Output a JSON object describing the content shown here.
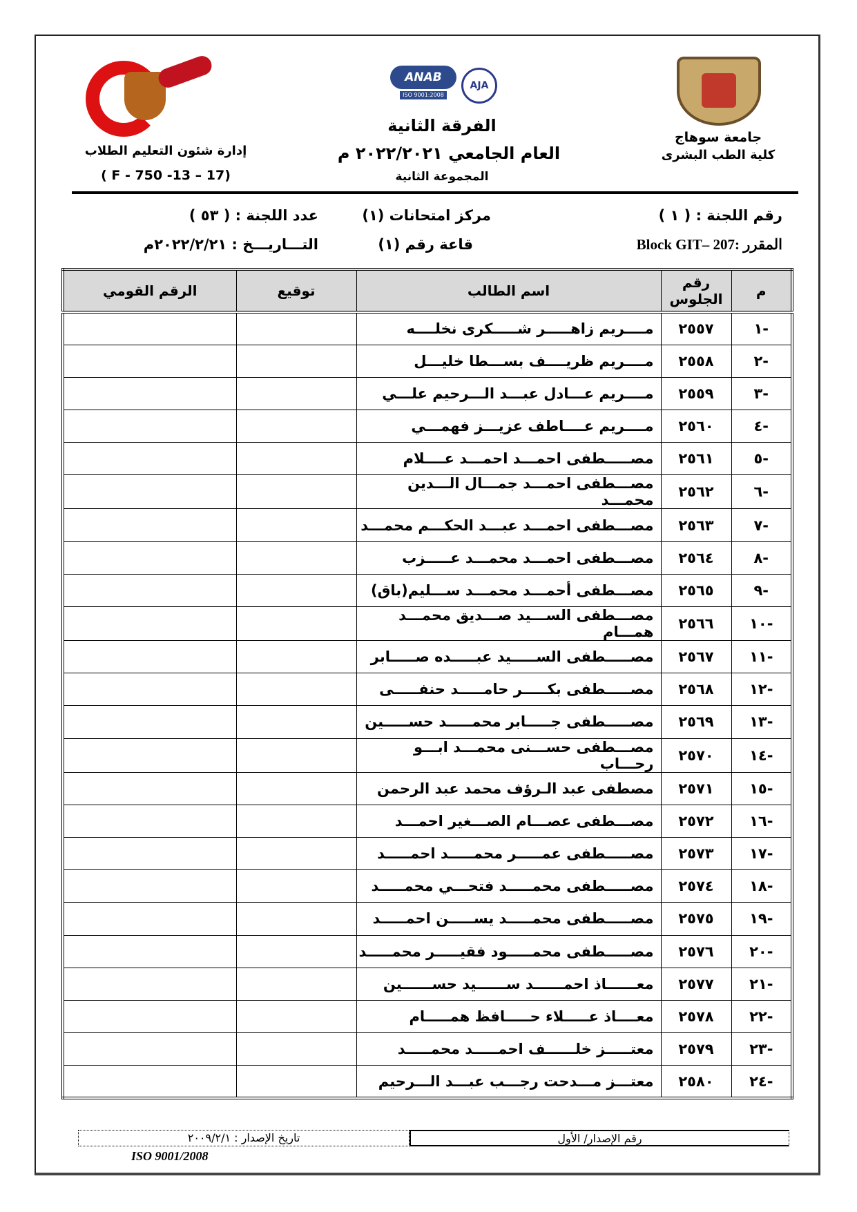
{
  "header": {
    "right_university": "جامعة سوهاج",
    "right_faculty": "كلية الطب البشرى",
    "center_year_level": "الفرقة الثانية",
    "center_academic_year": "العام الجامعي ٢٠٢٢/٢٠٢١ م",
    "center_group": "المجموعة الثانية",
    "left_department": "إدارة شئون التعليم الطلاب",
    "left_form_code": "( F - 750 -13 – 17)",
    "logo_left_text": "جامعة سوهاج كلية الطب",
    "logo_anab": "ANAB",
    "logo_iso": "ISO 9001:2008",
    "logo_aja": "AJA"
  },
  "info": {
    "committee_number": "رقم اللجنة : ( ١ )",
    "exam_center": "مركز امتحانات (١)",
    "committee_count": "عدد اللجنة : ( ٥٣ )",
    "course": "المقرر :Block GIT– 207",
    "hall": "قاعة رقم (١)",
    "date": "التـــاريـــخ : ٢٠٢٢/٢/٢١م"
  },
  "table": {
    "headers": [
      "م",
      "رقم الجلوس",
      "اسم الطالب",
      "توقيع",
      "الرقم القومي"
    ],
    "rows": [
      [
        "-١",
        "٢٥٥٧",
        "مــــريم زاهـــــر شـــــكرى نخلــــه"
      ],
      [
        "-٢",
        "٢٥٥٨",
        "مــــريم ظريــــف بســـطا خليـــل"
      ],
      [
        "-٣",
        "٢٥٥٩",
        "مــــريم عـــادل عبـــد الـــرحيم علـــي"
      ],
      [
        "-٤",
        "٢٥٦٠",
        "مــــريم عــــاطف عزيـــز فهمـــي"
      ],
      [
        "-٥",
        "٢٥٦١",
        "مصـــــطفى احمـــد احمـــد عــــلام"
      ],
      [
        "-٦",
        "٢٥٦٢",
        "مصـــطفى احمـــد جمـــال الـــدين محمـــد"
      ],
      [
        "-٧",
        "٢٥٦٣",
        "مصـــطفى احمـــد عبـــد الحكـــم محمـــد"
      ],
      [
        "-٨",
        "٢٥٦٤",
        "مصـــطفى احمـــد محمـــد عـــــزب"
      ],
      [
        "-٩",
        "٢٥٦٥",
        "مصـــطفى أحمـــد محمـــد ســـليم(باق)"
      ],
      [
        "-١٠",
        "٢٥٦٦",
        "مصـــطفى الســـيد صـــديق محمـــد همـــام"
      ],
      [
        "-١١",
        "٢٥٦٧",
        "مصـــــطفى الســـــيد عبـــــده صـــــابر"
      ],
      [
        "-١٢",
        "٢٥٦٨",
        "مصـــــطفى بكـــــر حامـــــد حنفـــــى"
      ],
      [
        "-١٣",
        "٢٥٦٩",
        "مصـــــطفى جـــــابر محمـــــد حســـــين"
      ],
      [
        "-١٤",
        "٢٥٧٠",
        "مصـــطفى حســـنى محمـــد ابـــو رحـــاب"
      ],
      [
        "-١٥",
        "٢٥٧١",
        "مصطفى عبد الـرؤف محمد عبد الرحمن"
      ],
      [
        "-١٦",
        "٢٥٧٢",
        "مصـــطفى عصـــام الصـــغير احمـــد"
      ],
      [
        "-١٧",
        "٢٥٧٣",
        "مصـــــطفى عمـــــر محمـــــد احمـــــد"
      ],
      [
        "-١٨",
        "٢٥٧٤",
        "مصـــــطفى محمـــــد فتحـــي محمـــــد"
      ],
      [
        "-١٩",
        "٢٥٧٥",
        "مصـــــطفى محمـــــد يســـــن احمـــــد"
      ],
      [
        "-٢٠",
        "٢٥٧٦",
        "مصـــــطفى محمـــــود فقيـــــر محمـــــد"
      ],
      [
        "-٢١",
        "٢٥٧٧",
        "معــــــاذ احمــــــد ســــــيد حســــــين"
      ],
      [
        "-٢٢",
        "٢٥٧٨",
        "معــــاذ عـــــلاء حـــــافظ همـــــام"
      ],
      [
        "-٢٣",
        "٢٥٧٩",
        "معتـــــز خلــــــف احمـــــد محمـــــد"
      ],
      [
        "-٢٤",
        "٢٥٨٠",
        "معتـــز مـــدحت رجـــب عبـــد الـــرحيم"
      ]
    ]
  },
  "footer": {
    "issue_number": "رقم الإصدار/ الأول",
    "issue_date": "تاريخ الإصدار : ٢٠٠٩/٢/١",
    "iso": "ISO 9001/2008"
  }
}
